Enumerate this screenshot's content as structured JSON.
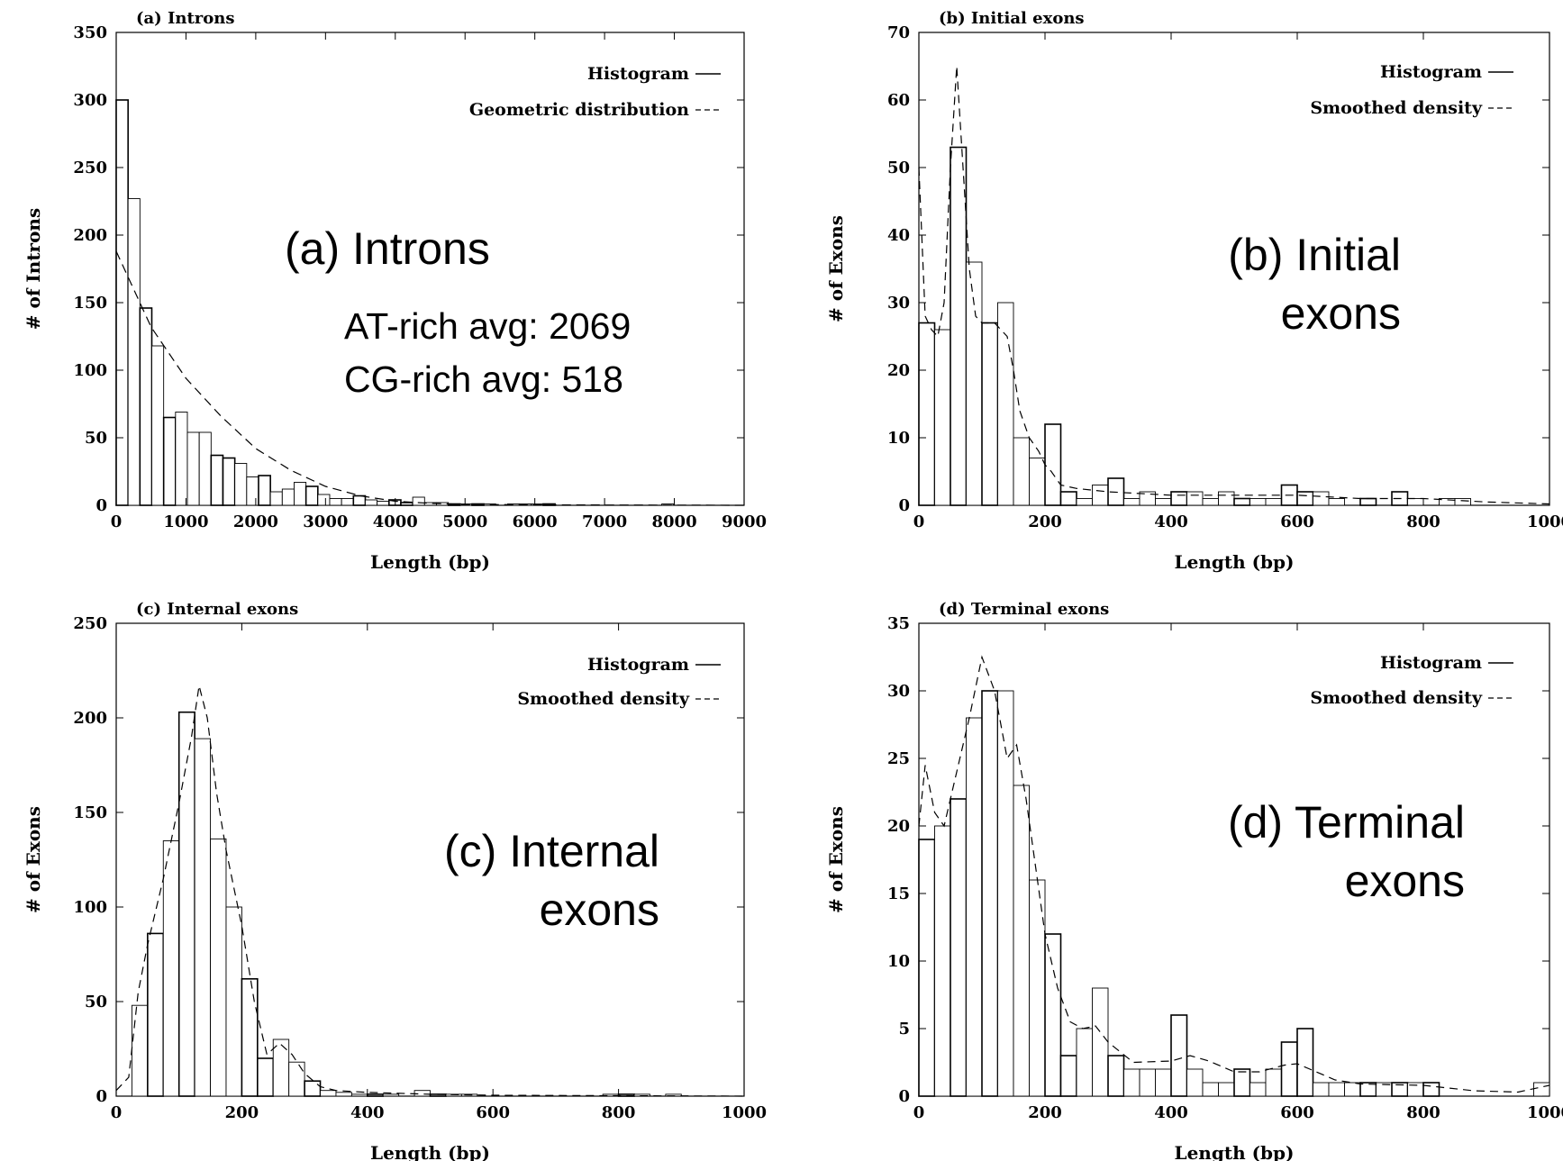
{
  "chart_data": [
    {
      "type": "bar",
      "title": "(a) Introns",
      "xlabel": "Length (bp)",
      "ylabel": "# of Introns",
      "xlim": [
        0,
        9000
      ],
      "ylim": [
        0,
        350
      ],
      "xticks": [
        0,
        1000,
        2000,
        3000,
        4000,
        5000,
        6000,
        7000,
        8000,
        9000
      ],
      "yticks": [
        0,
        50,
        100,
        150,
        200,
        250,
        300,
        350
      ],
      "bin_width": 170,
      "legend": [
        "Histogram",
        "Geometric distribution"
      ],
      "legend_position": "top-right",
      "values": [
        300,
        227,
        146,
        118,
        65,
        69,
        54,
        54,
        37,
        35,
        31,
        21,
        22,
        10,
        12,
        17,
        14,
        8,
        5,
        5,
        7,
        4,
        3,
        4,
        2,
        6,
        2,
        2,
        1,
        1,
        1,
        1,
        0,
        1,
        1,
        1,
        1,
        0,
        0,
        0,
        0,
        0,
        0,
        0,
        0,
        0,
        1,
        0,
        0,
        0,
        0,
        0,
        0,
        0,
        0,
        0,
        0,
        0,
        0,
        0,
        0,
        0,
        0,
        0,
        0,
        0,
        0,
        0,
        0,
        0,
        0,
        0,
        0,
        0,
        0,
        0,
        0,
        0,
        0,
        0,
        0,
        0,
        0,
        0,
        0,
        0,
        0,
        0,
        0,
        0,
        0,
        0,
        0,
        0,
        0,
        0,
        0,
        0,
        0,
        0,
        0,
        0,
        0,
        0,
        0,
        0,
        0,
        0,
        0,
        0,
        0,
        0,
        0,
        0,
        0,
        0
      ],
      "curve": [
        [
          0,
          188
        ],
        [
          500,
          132
        ],
        [
          1000,
          94
        ],
        [
          1500,
          66
        ],
        [
          2000,
          42
        ],
        [
          2500,
          26
        ],
        [
          3000,
          14
        ],
        [
          3500,
          7
        ],
        [
          4000,
          3
        ],
        [
          4500,
          1.5
        ],
        [
          5000,
          0.7
        ],
        [
          6000,
          0.3
        ],
        [
          9000,
          0
        ]
      ]
    },
    {
      "type": "bar",
      "title": "(b) Initial exons",
      "xlabel": "Length (bp)",
      "ylabel": "# of Exons",
      "xlim": [
        0,
        1000
      ],
      "ylim": [
        0,
        70
      ],
      "xticks": [
        0,
        200,
        400,
        600,
        800,
        1000
      ],
      "yticks": [
        0,
        10,
        20,
        30,
        40,
        50,
        60,
        70
      ],
      "bin_width": 25,
      "legend": [
        "Histogram",
        "Smoothed density"
      ],
      "legend_position": "top-right",
      "values": [
        27,
        26,
        53,
        36,
        27,
        30,
        10,
        7,
        12,
        2,
        1,
        3,
        4,
        1,
        2,
        1,
        2,
        2,
        1,
        2,
        1,
        1,
        1,
        3,
        2,
        2,
        1,
        0,
        1,
        0,
        2,
        1,
        0,
        1,
        1,
        0,
        0,
        0,
        0,
        0
      ],
      "curve": [
        [
          0,
          50
        ],
        [
          10,
          28
        ],
        [
          20,
          26
        ],
        [
          30,
          25
        ],
        [
          40,
          30
        ],
        [
          50,
          50
        ],
        [
          60,
          65
        ],
        [
          70,
          50
        ],
        [
          80,
          35
        ],
        [
          90,
          28
        ],
        [
          100,
          27
        ],
        [
          120,
          27
        ],
        [
          140,
          25
        ],
        [
          150,
          20
        ],
        [
          160,
          14
        ],
        [
          175,
          10
        ],
        [
          190,
          8
        ],
        [
          200,
          6
        ],
        [
          210,
          5
        ],
        [
          225,
          3
        ],
        [
          250,
          2.5
        ],
        [
          300,
          2
        ],
        [
          400,
          1.5
        ],
        [
          600,
          1.5
        ],
        [
          700,
          1
        ],
        [
          800,
          1
        ],
        [
          900,
          0.5
        ],
        [
          1000,
          0.2
        ]
      ]
    },
    {
      "type": "bar",
      "title": "(c) Internal exons",
      "xlabel": "Length (bp)",
      "ylabel": "# of Exons",
      "xlim": [
        0,
        1000
      ],
      "ylim": [
        0,
        250
      ],
      "xticks": [
        0,
        200,
        400,
        600,
        800,
        1000
      ],
      "yticks": [
        0,
        50,
        100,
        150,
        200,
        250
      ],
      "bin_width": 25,
      "legend": [
        "Histogram",
        "Smoothed density"
      ],
      "legend_position": "top-right",
      "values": [
        0,
        48,
        86,
        135,
        203,
        189,
        136,
        100,
        62,
        20,
        30,
        18,
        8,
        3,
        2,
        1,
        1,
        1,
        0,
        3,
        1,
        1,
        1,
        0,
        0,
        0,
        0,
        0,
        0,
        0,
        0,
        1,
        1,
        1,
        0,
        1,
        0,
        0,
        0,
        0
      ],
      "curve": [
        [
          0,
          3
        ],
        [
          20,
          10
        ],
        [
          35,
          55
        ],
        [
          50,
          80
        ],
        [
          75,
          115
        ],
        [
          100,
          155
        ],
        [
          120,
          190
        ],
        [
          132,
          217
        ],
        [
          145,
          200
        ],
        [
          160,
          160
        ],
        [
          175,
          130
        ],
        [
          200,
          90
        ],
        [
          220,
          50
        ],
        [
          240,
          22
        ],
        [
          260,
          28
        ],
        [
          280,
          22
        ],
        [
          300,
          12
        ],
        [
          325,
          5
        ],
        [
          350,
          3
        ],
        [
          400,
          2
        ],
        [
          500,
          1
        ],
        [
          600,
          0.5
        ],
        [
          1000,
          0
        ]
      ]
    },
    {
      "type": "bar",
      "title": "(d) Terminal exons",
      "xlabel": "Length (bp)",
      "ylabel": "# of Exons",
      "xlim": [
        0,
        1000
      ],
      "ylim": [
        0,
        35
      ],
      "xticks": [
        0,
        200,
        400,
        600,
        800,
        1000
      ],
      "yticks": [
        0,
        5,
        10,
        15,
        20,
        25,
        30,
        35
      ],
      "bin_width": 25,
      "legend": [
        "Histogram",
        "Smoothed density"
      ],
      "legend_position": "top-right",
      "values": [
        19,
        20,
        22,
        28,
        30,
        30,
        23,
        16,
        12,
        3,
        5,
        8,
        3,
        2,
        2,
        2,
        6,
        2,
        1,
        1,
        2,
        1,
        2,
        4,
        5,
        1,
        1,
        1,
        1,
        1,
        1,
        1,
        1,
        0,
        0,
        0,
        0,
        0,
        0,
        1
      ],
      "curve": [
        [
          0,
          20
        ],
        [
          10,
          24.5
        ],
        [
          25,
          21
        ],
        [
          40,
          20
        ],
        [
          60,
          24
        ],
        [
          80,
          28
        ],
        [
          100,
          32.5
        ],
        [
          120,
          30
        ],
        [
          140,
          25
        ],
        [
          155,
          26
        ],
        [
          170,
          22
        ],
        [
          185,
          17
        ],
        [
          200,
          12
        ],
        [
          220,
          8
        ],
        [
          240,
          5.5
        ],
        [
          260,
          5
        ],
        [
          280,
          5.2
        ],
        [
          300,
          4
        ],
        [
          340,
          2.5
        ],
        [
          400,
          2.6
        ],
        [
          430,
          3
        ],
        [
          460,
          2.6
        ],
        [
          500,
          1.8
        ],
        [
          540,
          1.8
        ],
        [
          580,
          2.3
        ],
        [
          600,
          2.4
        ],
        [
          620,
          2
        ],
        [
          660,
          1.2
        ],
        [
          700,
          0.9
        ],
        [
          800,
          0.8
        ],
        [
          880,
          0.4
        ],
        [
          950,
          0.3
        ],
        [
          1000,
          0.8
        ]
      ]
    }
  ],
  "annotations": {
    "a_title": "(a) Introns",
    "a_line1": "AT-rich avg: 2069",
    "a_line2": "CG-rich avg:  518",
    "b_line1": "(b) Initial",
    "b_line2": "exons",
    "c_line1": "(c) Internal",
    "c_line2": "exons",
    "d_line1": "(d) Terminal",
    "d_line2": "exons"
  }
}
